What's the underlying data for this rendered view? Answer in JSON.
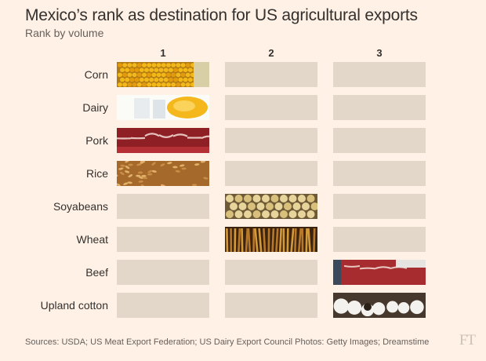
{
  "header": {
    "title": "Mexico’s rank as destination for US agricultural exports",
    "subtitle": "Rank by volume"
  },
  "chart_data": {
    "type": "table",
    "columns": [
      "1",
      "2",
      "3"
    ],
    "rows": [
      {
        "label": "Corn",
        "rank": 1,
        "photo": "corn-photo"
      },
      {
        "label": "Dairy",
        "rank": 1,
        "photo": "dairy-photo"
      },
      {
        "label": "Pork",
        "rank": 1,
        "photo": "pork-photo"
      },
      {
        "label": "Rice",
        "rank": 1,
        "photo": "rice-photo"
      },
      {
        "label": "Soyabeans",
        "rank": 2,
        "photo": "soyabeans-photo"
      },
      {
        "label": "Wheat",
        "rank": 2,
        "photo": "wheat-photo"
      },
      {
        "label": "Beef",
        "rank": 3,
        "photo": "beef-photo"
      },
      {
        "label": "Upland cotton",
        "rank": 3,
        "photo": "cotton-photo"
      }
    ]
  },
  "footer": {
    "source": "Sources: USDA; US Meat Export Federation; US Dairy Export Council   Photos: Getty Images; Dreamstime",
    "logo": "FT"
  },
  "colors": {
    "background": "#fff1e5",
    "empty_cell": "#e3d7c9"
  }
}
